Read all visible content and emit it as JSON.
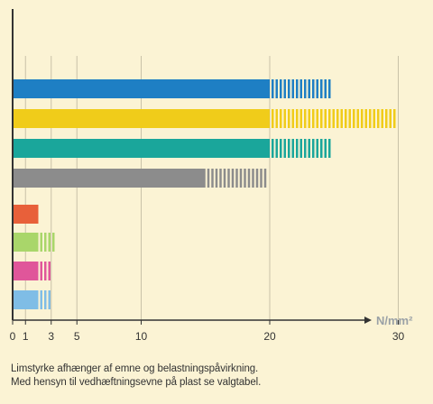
{
  "chart_data": {
    "type": "bar",
    "orientation": "horizontal",
    "xlim": [
      0,
      33
    ],
    "x_ticks": [
      0,
      1,
      3,
      5,
      10,
      20,
      30
    ],
    "unit_label": "N/mm²",
    "grid": "vertical",
    "bars": [
      {
        "color": "#1e7fc4",
        "min": 20,
        "max": 25
      },
      {
        "color": "#f0cc1a",
        "min": 20,
        "max": 30
      },
      {
        "color": "#1aa69b",
        "min": 20,
        "max": 25
      },
      {
        "color": "#8c8c8c",
        "min": 15,
        "max": 20
      },
      {
        "color": "#e8603a",
        "min": 2,
        "max": 2
      },
      {
        "color": "#a9d66a",
        "min": 2,
        "max": 3.5
      },
      {
        "color": "#e0569a",
        "min": 2,
        "max": 3
      },
      {
        "color": "#7fbde6",
        "min": 2,
        "max": 3
      }
    ]
  },
  "caption": {
    "line1": "Limstyrke afhænger af emne og belastningspåvirkning.",
    "line2": "Med hensyn til vedhæftningsevne på plast se valgtabel."
  }
}
